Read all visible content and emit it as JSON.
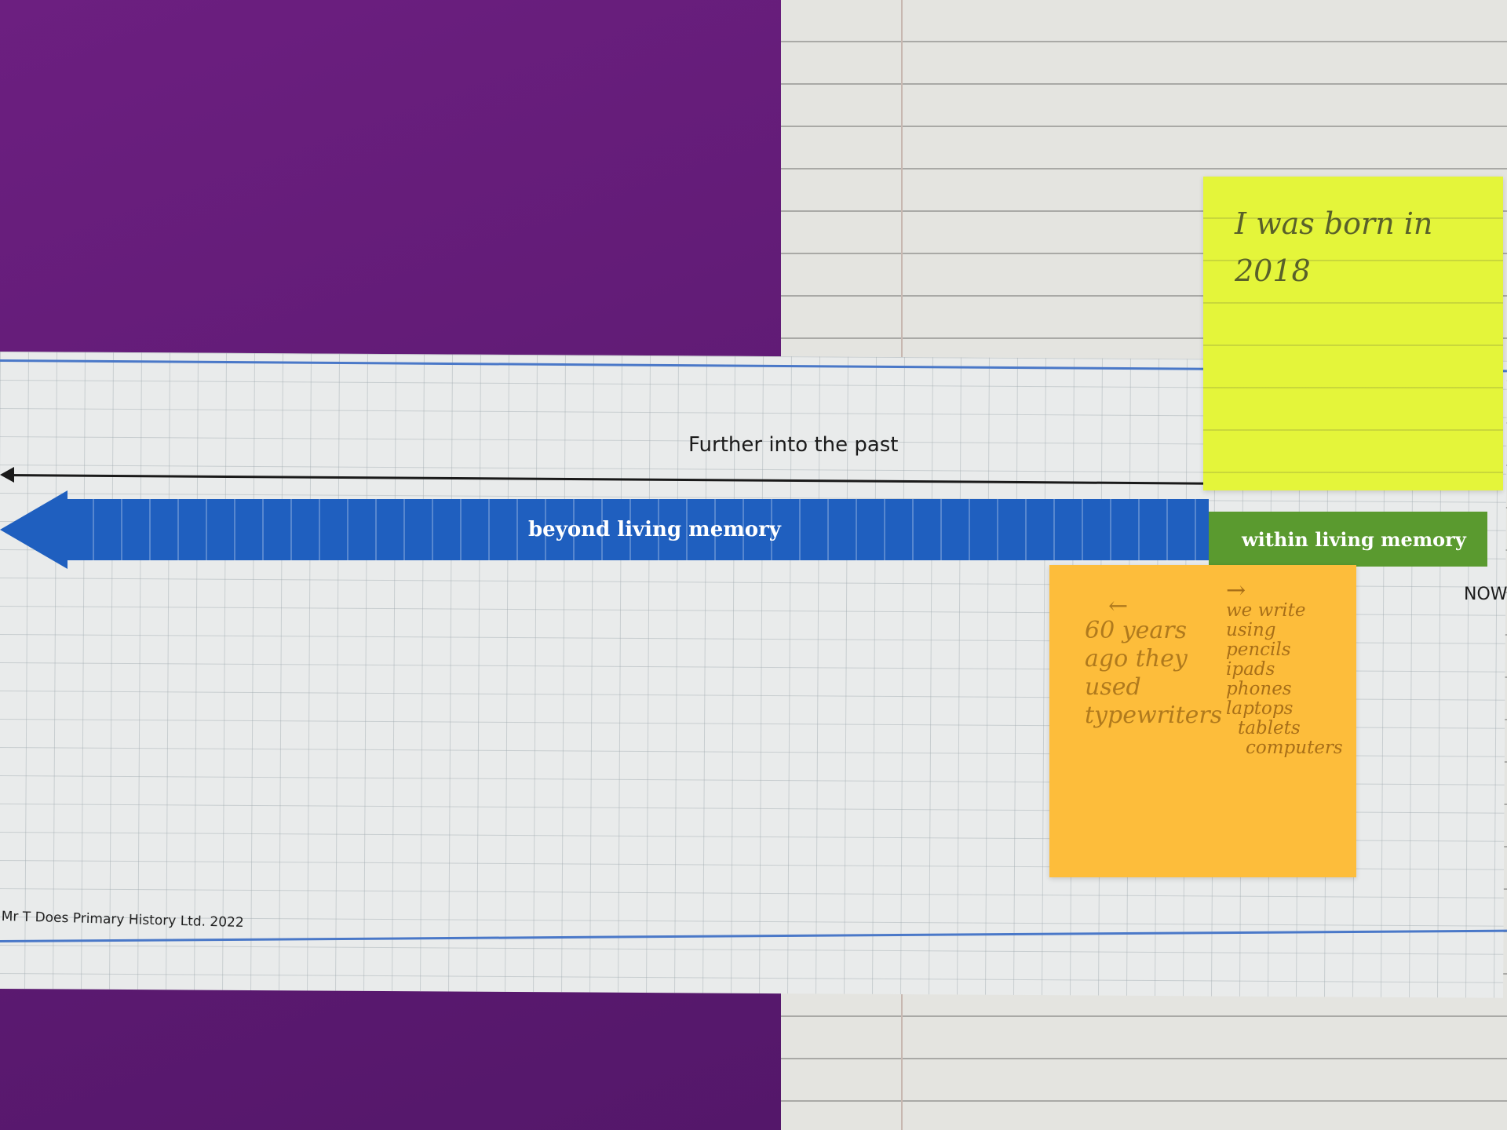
{
  "worksheet": {
    "past_label": "Further into the past",
    "beyond_label": "beyond living memory",
    "within_label": "within living memory",
    "now_label": "NOW",
    "copyright": "Mr T Does Primary History Ltd. 2022",
    "colors": {
      "beyond": "#1f5fbf",
      "within": "#5a9a2f",
      "background": "#6a1f7e"
    }
  },
  "sticky_yellow": {
    "lines": [
      "I was born in",
      "2018"
    ],
    "color": "#e4f53a"
  },
  "sticky_orange": {
    "color": "#fdbd3b",
    "left_arrow": "←",
    "left_lines": [
      "60 years",
      "ago they",
      "used",
      "typewriters"
    ],
    "right_arrow": "→",
    "right_lines": [
      "we write",
      "using",
      "pencils",
      "ipads",
      "phones",
      "laptops",
      "tablets",
      "computers"
    ]
  }
}
